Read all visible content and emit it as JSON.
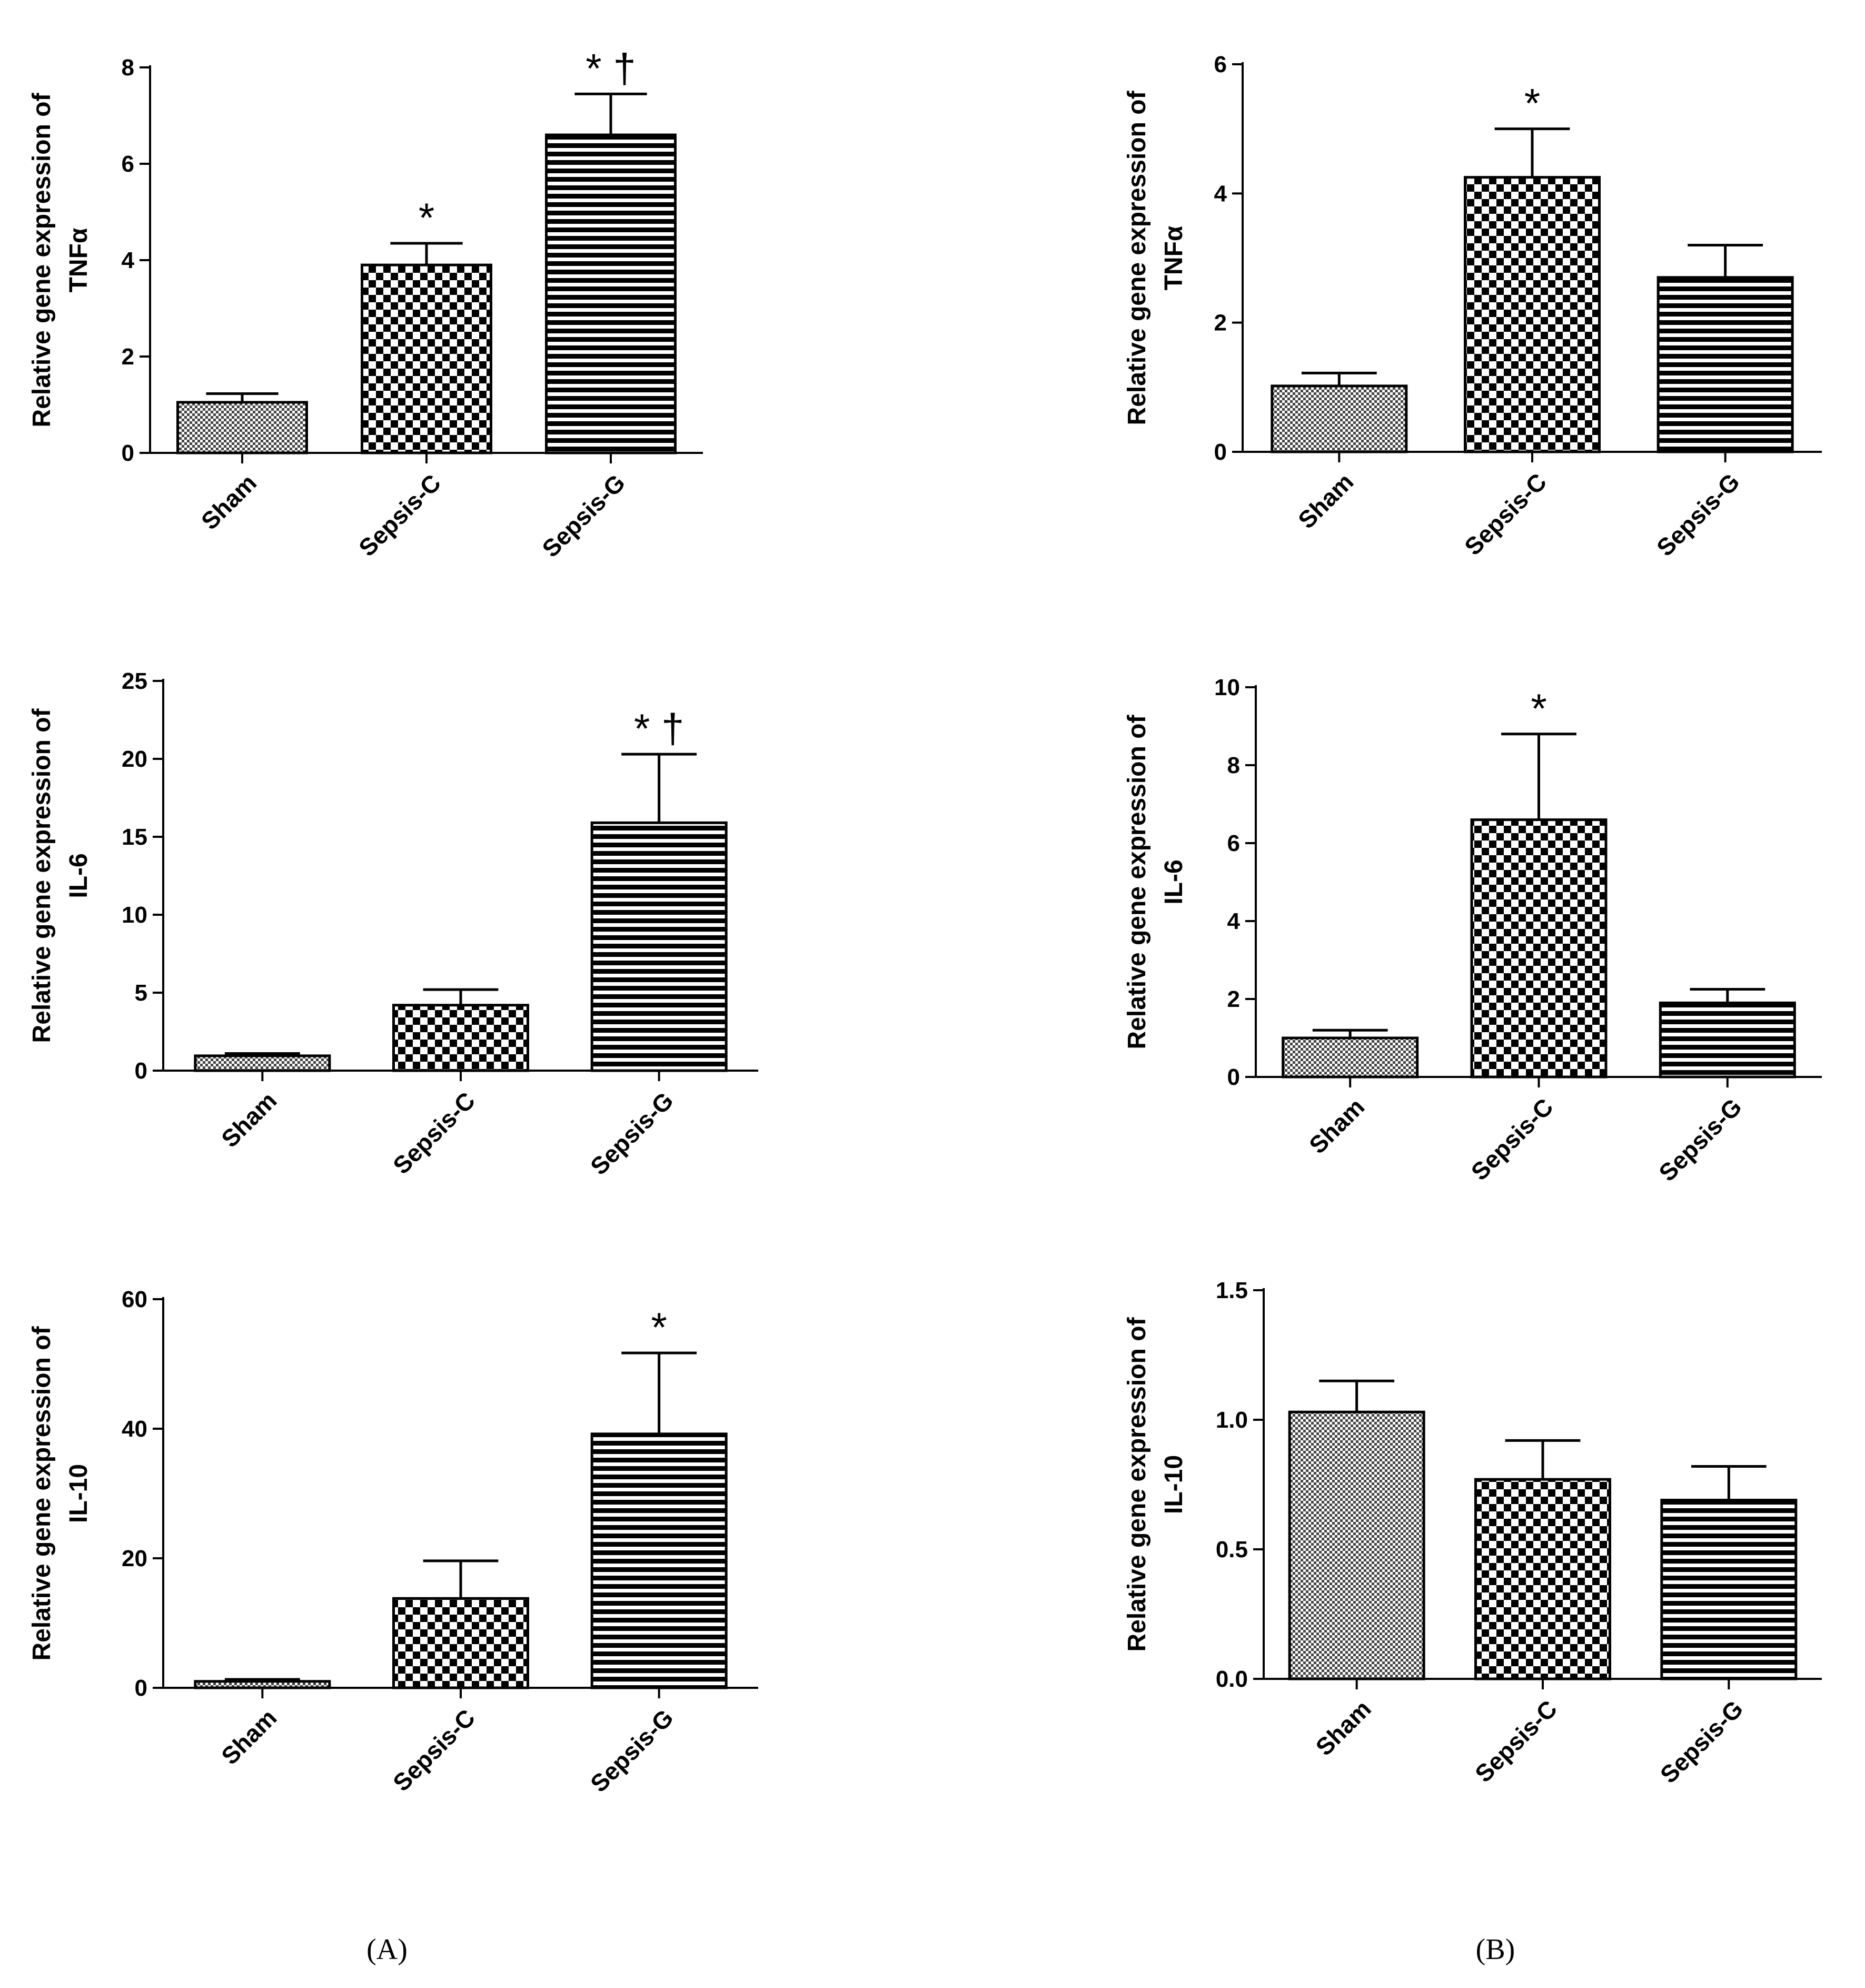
{
  "panel_labels": {
    "A": "(A)",
    "B": "(B)"
  },
  "chart_data": [
    {
      "id": "A-TNF",
      "type": "bar",
      "panel": "A",
      "ylabel_line1": "Relative gene expression of",
      "ylabel_line2": "TNFα",
      "categories": [
        "Sham",
        "Sepsis-C",
        "Sepsis-G"
      ],
      "values": [
        1.05,
        3.9,
        6.6
      ],
      "errors": [
        0.18,
        0.45,
        0.85
      ],
      "annotations": [
        "",
        "*",
        "* †"
      ],
      "ylim": [
        0,
        8
      ],
      "ticks": [
        "0",
        "2",
        "4",
        "6",
        "8"
      ]
    },
    {
      "id": "B-TNF",
      "type": "bar",
      "panel": "B",
      "ylabel_line1": "Relative gene expression of",
      "ylabel_line2": "TNFα",
      "categories": [
        "Sham",
        "Sepsis-C",
        "Sepsis-G"
      ],
      "values": [
        1.02,
        4.25,
        2.7
      ],
      "errors": [
        0.2,
        0.75,
        0.5
      ],
      "annotations": [
        "",
        "*",
        ""
      ],
      "ylim": [
        0,
        6
      ],
      "ticks": [
        "0",
        "2",
        "4",
        "6"
      ]
    },
    {
      "id": "A-IL6",
      "type": "bar",
      "panel": "A",
      "ylabel_line1": "Relative gene expression of",
      "ylabel_line2": "IL-6",
      "categories": [
        "Sham",
        "Sepsis-C",
        "Sepsis-G"
      ],
      "values": [
        0.95,
        4.2,
        15.9
      ],
      "errors": [
        0.15,
        1.0,
        4.4
      ],
      "annotations": [
        "",
        "",
        "* †"
      ],
      "ylim": [
        0,
        25
      ],
      "ticks": [
        "0",
        "5",
        "10",
        "15",
        "20",
        "25"
      ]
    },
    {
      "id": "B-IL6",
      "type": "bar",
      "panel": "B",
      "ylabel_line1": "Relative gene expression of",
      "ylabel_line2": "IL-6",
      "categories": [
        "Sham",
        "Sepsis-C",
        "Sepsis-G"
      ],
      "values": [
        1.0,
        6.6,
        1.9
      ],
      "errors": [
        0.2,
        2.2,
        0.35
      ],
      "annotations": [
        "",
        "*",
        ""
      ],
      "ylim": [
        0,
        10
      ],
      "ticks": [
        "0",
        "2",
        "4",
        "6",
        "8",
        "10"
      ]
    },
    {
      "id": "A-IL10",
      "type": "bar",
      "panel": "A",
      "ylabel_line1": "Relative gene expression of",
      "ylabel_line2": "IL-10",
      "categories": [
        "Sham",
        "Sepsis-C",
        "Sepsis-G"
      ],
      "values": [
        1.0,
        13.8,
        39.2
      ],
      "errors": [
        0.3,
        5.8,
        12.5
      ],
      "annotations": [
        "",
        "",
        "*"
      ],
      "ylim": [
        0,
        60
      ],
      "ticks": [
        "0",
        "20",
        "40",
        "60"
      ]
    },
    {
      "id": "B-IL10",
      "type": "bar",
      "panel": "B",
      "ylabel_line1": "Relative gene expression of",
      "ylabel_line2": "IL-10",
      "categories": [
        "Sham",
        "Sepsis-C",
        "Sepsis-G"
      ],
      "values": [
        1.03,
        0.77,
        0.69
      ],
      "errors": [
        0.12,
        0.15,
        0.13
      ],
      "annotations": [
        "",
        "",
        ""
      ],
      "ylim": [
        0,
        1.5
      ],
      "ticks": [
        "0.0",
        "0.5",
        "1.0",
        "1.5"
      ]
    }
  ]
}
